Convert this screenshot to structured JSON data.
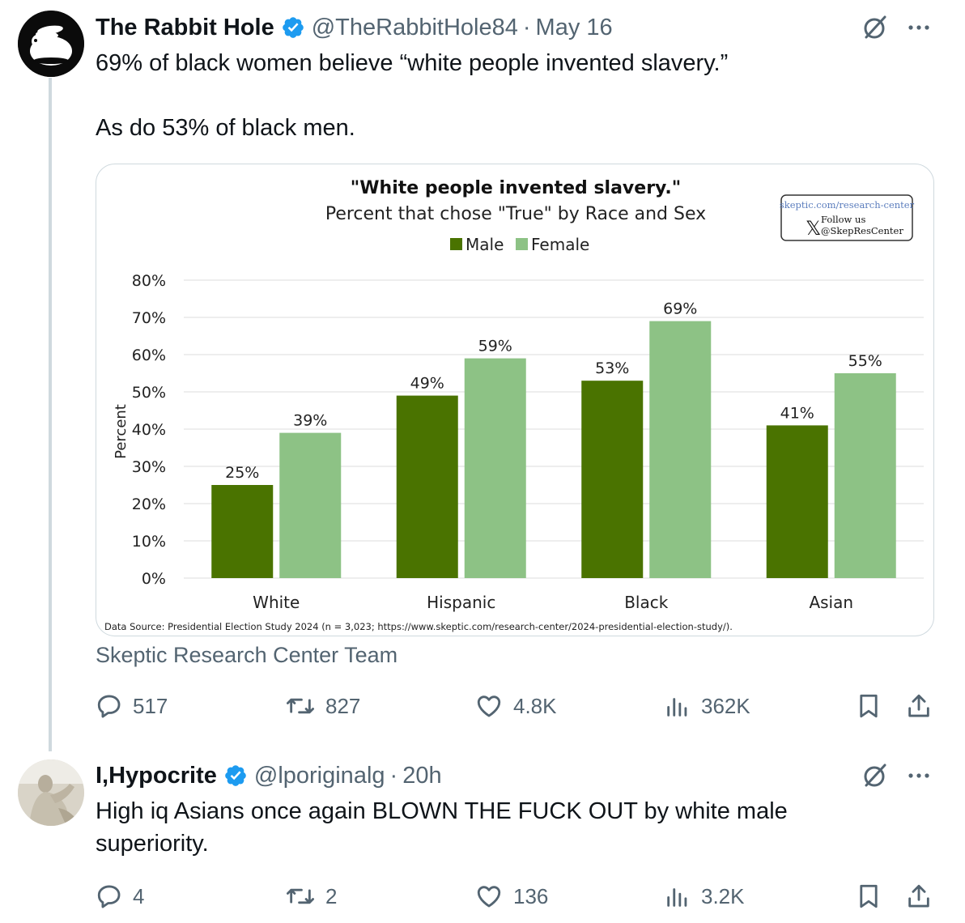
{
  "tweet1": {
    "name": "The Rabbit Hole",
    "handle": "@TheRabbitHole84",
    "separator": "·",
    "time": "May 16",
    "text_line1": "69% of black women believe “white people invented slavery.”",
    "text_line2": "As do 53% of black men.",
    "attribution": "Skeptic Research Center Team",
    "replies": "517",
    "reposts": "827",
    "likes": "4.8K",
    "views": "362K"
  },
  "tweet2": {
    "name": "I,Hypocrite",
    "handle": "@lporiginalg",
    "separator": "·",
    "time": "20h",
    "text_line1": "High iq Asians once again BLOWN THE FUCK OUT by white male",
    "text_line2": "superiority.",
    "replies": "4",
    "reposts": "2",
    "likes": "136",
    "views": "3.2K"
  },
  "colors": {
    "male": "#4a7300",
    "female": "#8dc285",
    "verified": "#1d9bf0",
    "muted": "#536471"
  },
  "icons": [
    "verified-badge-icon",
    "grok-icon",
    "more-icon",
    "reply-icon",
    "repost-icon",
    "like-icon",
    "views-icon",
    "bookmark-icon",
    "share-icon"
  ],
  "chart_data": {
    "type": "bar",
    "title": "\"White people invented slavery.\"",
    "subtitle": "Percent that chose \"True\" by Race and Sex",
    "categories": [
      "White",
      "Hispanic",
      "Black",
      "Asian"
    ],
    "series": [
      {
        "name": "Male",
        "values": [
          25,
          49,
          53,
          41
        ]
      },
      {
        "name": "Female",
        "values": [
          39,
          59,
          69,
          55
        ]
      }
    ],
    "value_labels": [
      [
        "25%",
        "49%",
        "53%",
        "41%"
      ],
      [
        "39%",
        "59%",
        "69%",
        "55%"
      ]
    ],
    "ylabel": "Percent",
    "ylim": [
      0,
      80
    ],
    "yticks": [
      "0%",
      "10%",
      "20%",
      "30%",
      "40%",
      "50%",
      "60%",
      "70%",
      "80%"
    ],
    "grid": true,
    "legend_position": "top-center",
    "badge_url": "skeptic.com/research-center",
    "badge_follow": "Follow us",
    "badge_handle": "@SkepResCenter",
    "source_note": "Data Source: Presidential Election Study 2024 (n = 3,023; https://www.skeptic.com/research-center/2024-presidential-election-study/)."
  }
}
